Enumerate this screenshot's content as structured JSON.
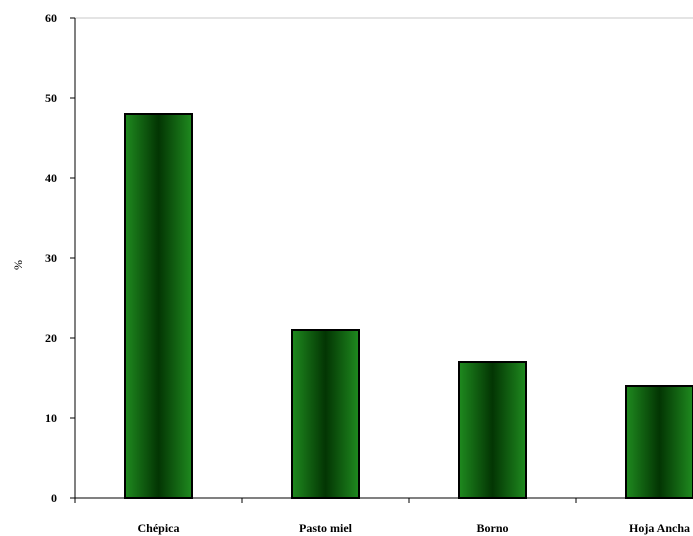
{
  "chart_data": {
    "type": "bar",
    "categories": [
      "Chépica",
      "Pasto miel",
      "Borno",
      "Hoja Ancha"
    ],
    "values": [
      48,
      21,
      17,
      14
    ],
    "title": "",
    "xlabel": "",
    "ylabel": "%",
    "ylim": [
      0,
      60
    ],
    "yticks": [
      0,
      10,
      20,
      30,
      40,
      50,
      60
    ],
    "grid": false,
    "legend": "none",
    "bar_color": "#0a5a0a",
    "bar_edge_color": "#000000"
  }
}
